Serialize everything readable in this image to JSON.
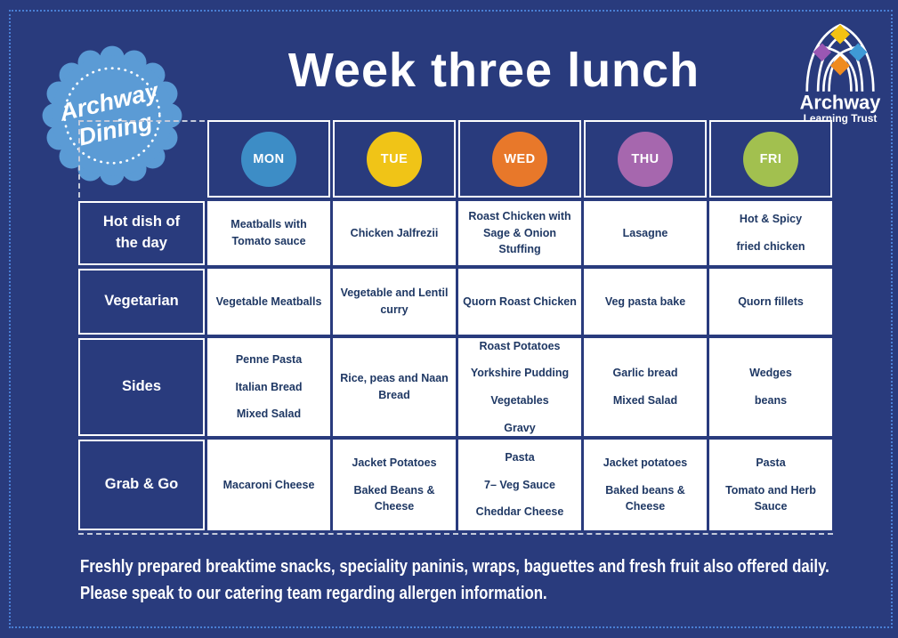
{
  "page": {
    "background_color": "#293b7d",
    "dotted_border_color": "#4a7fd4"
  },
  "header": {
    "title": "Week three lunch"
  },
  "badge": {
    "line1": "Archway",
    "line2": "Dining",
    "color": "#5b9bd5"
  },
  "logo": {
    "name": "Archway",
    "subtitle": "Learning Trust",
    "diamond_colors": {
      "top": "#f3c212",
      "left": "#9a57b3",
      "right": "#3f9ad6",
      "center": "#ef8b1f"
    }
  },
  "menu": {
    "days": [
      {
        "label": "MON",
        "color": "#3d8dc6"
      },
      {
        "label": "TUE",
        "color": "#f0c417"
      },
      {
        "label": "WED",
        "color": "#e8782a"
      },
      {
        "label": "THU",
        "color": "#a667ae"
      },
      {
        "label": "FRI",
        "color": "#a2c04f"
      }
    ],
    "rows": [
      {
        "label": "Hot dish of the day",
        "cells": [
          [
            "Meatballs with Tomato sauce"
          ],
          [
            "Chicken Jalfrezii"
          ],
          [
            "Roast Chicken with Sage & Onion Stuffing"
          ],
          [
            "Lasagne"
          ],
          [
            "Hot & Spicy",
            "fried chicken"
          ]
        ]
      },
      {
        "label": "Vegetarian",
        "cells": [
          [
            "Vegetable Meatballs"
          ],
          [
            "Vegetable and Lentil curry"
          ],
          [
            "Quorn Roast Chicken"
          ],
          [
            "Veg pasta bake"
          ],
          [
            "Quorn fillets"
          ]
        ]
      },
      {
        "label": "Sides",
        "cells": [
          [
            "Penne Pasta",
            "Italian Bread",
            "Mixed Salad"
          ],
          [
            "Rice, peas and Naan Bread"
          ],
          [
            "Roast Potatoes",
            "Yorkshire Pudding",
            "Vegetables",
            "Gravy"
          ],
          [
            "Garlic bread",
            "Mixed Salad"
          ],
          [
            "Wedges",
            "beans"
          ]
        ]
      },
      {
        "label": "Grab & Go",
        "cells": [
          [
            "Macaroni Cheese"
          ],
          [
            "Jacket Potatoes",
            "Baked Beans & Cheese"
          ],
          [
            "Pasta",
            "7– Veg Sauce",
            "Cheddar Cheese"
          ],
          [
            "Jacket potatoes",
            "Baked beans & Cheese"
          ],
          [
            "Pasta",
            "Tomato and Herb Sauce"
          ]
        ]
      }
    ]
  },
  "footer": {
    "line1": "Freshly prepared breaktime snacks, speciality paninis, wraps, baguettes and fresh fruit also offered daily.",
    "line2": "Please speak to our catering team regarding allergen information."
  }
}
